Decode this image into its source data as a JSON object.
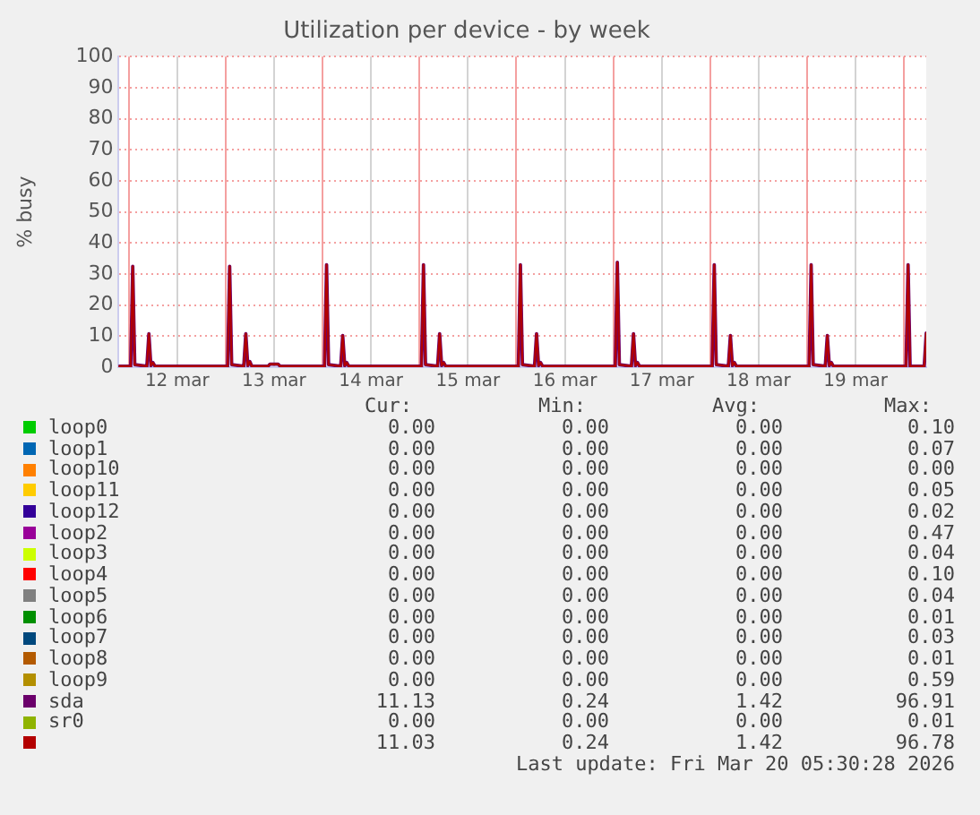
{
  "chart_data": {
    "type": "line",
    "title": "Utilization per device - by week",
    "ylabel": "% busy",
    "xlim": [
      "2026-03-11T21:30",
      "2026-03-20T05:30"
    ],
    "xticks": [
      {
        "value": "2026-03-12T00:00",
        "label": null
      },
      {
        "value": "2026-03-12T12:00",
        "label": "12 mar"
      },
      {
        "value": "2026-03-13T00:00",
        "label": null
      },
      {
        "value": "2026-03-13T12:00",
        "label": "13 mar"
      },
      {
        "value": "2026-03-14T00:00",
        "label": null
      },
      {
        "value": "2026-03-14T12:00",
        "label": "14 mar"
      },
      {
        "value": "2026-03-15T00:00",
        "label": null
      },
      {
        "value": "2026-03-15T12:00",
        "label": "15 mar"
      },
      {
        "value": "2026-03-16T00:00",
        "label": null
      },
      {
        "value": "2026-03-16T12:00",
        "label": "16 mar"
      },
      {
        "value": "2026-03-17T00:00",
        "label": null
      },
      {
        "value": "2026-03-17T12:00",
        "label": "17 mar"
      },
      {
        "value": "2026-03-18T00:00",
        "label": null
      },
      {
        "value": "2026-03-18T12:00",
        "label": "18 mar"
      },
      {
        "value": "2026-03-19T00:00",
        "label": null
      },
      {
        "value": "2026-03-19T12:00",
        "label": "19 mar"
      },
      {
        "value": "2026-03-20T00:00",
        "label": null
      }
    ],
    "ylim": [
      0,
      100
    ],
    "yticks": [
      0,
      10,
      20,
      30,
      40,
      50,
      60,
      70,
      80,
      90,
      100
    ],
    "grid": true,
    "legend": "bottom",
    "marker": "none",
    "line_style": "solid",
    "series": [
      {
        "name": "loop0",
        "color": "#00cc00"
      },
      {
        "name": "loop1",
        "color": "#0066b3"
      },
      {
        "name": "loop10",
        "color": "#ff8000"
      },
      {
        "name": "loop11",
        "color": "#ffcc00"
      },
      {
        "name": "loop12",
        "color": "#330099"
      },
      {
        "name": "loop2",
        "color": "#990099"
      },
      {
        "name": "loop3",
        "color": "#ccff00"
      },
      {
        "name": "loop4",
        "color": "#ff0000"
      },
      {
        "name": "loop5",
        "color": "#808080"
      },
      {
        "name": "loop6",
        "color": "#008f00"
      },
      {
        "name": "loop7",
        "color": "#00487d"
      },
      {
        "name": "loop8",
        "color": "#b35a00"
      },
      {
        "name": "loop9",
        "color": "#b38f00"
      },
      {
        "name": "sda",
        "color": "#6b006b",
        "x": [
          "2026-03-11T21:30",
          "2026-03-12T00:30",
          "2026-03-12T01:00",
          "2026-03-12T01:30",
          "2026-03-12T04:30",
          "2026-03-12T05:00",
          "2026-03-12T05:30",
          "2026-03-12T06:00",
          "2026-03-12T06:30",
          "2026-03-12T23:30",
          "2026-03-13T00:30",
          "2026-03-13T01:00",
          "2026-03-13T01:30",
          "2026-03-13T04:30",
          "2026-03-13T05:00",
          "2026-03-13T05:30",
          "2026-03-13T06:00",
          "2026-03-13T06:30",
          "2026-03-13T10:30",
          "2026-03-13T11:00",
          "2026-03-13T13:00",
          "2026-03-13T13:30",
          "2026-03-13T23:30",
          "2026-03-14T00:30",
          "2026-03-14T01:00",
          "2026-03-14T01:30",
          "2026-03-14T04:30",
          "2026-03-14T05:00",
          "2026-03-14T05:30",
          "2026-03-14T06:00",
          "2026-03-14T06:30",
          "2026-03-14T23:30",
          "2026-03-15T00:30",
          "2026-03-15T01:00",
          "2026-03-15T01:30",
          "2026-03-15T04:30",
          "2026-03-15T05:00",
          "2026-03-15T05:30",
          "2026-03-15T06:00",
          "2026-03-15T06:30",
          "2026-03-15T23:30",
          "2026-03-16T00:30",
          "2026-03-16T01:00",
          "2026-03-16T01:30",
          "2026-03-16T04:30",
          "2026-03-16T05:00",
          "2026-03-16T05:30",
          "2026-03-16T06:00",
          "2026-03-16T06:30",
          "2026-03-16T23:30",
          "2026-03-17T00:30",
          "2026-03-17T01:00",
          "2026-03-17T01:30",
          "2026-03-17T04:30",
          "2026-03-17T05:00",
          "2026-03-17T05:30",
          "2026-03-17T06:00",
          "2026-03-17T06:30",
          "2026-03-17T23:30",
          "2026-03-18T00:30",
          "2026-03-18T01:00",
          "2026-03-18T01:30",
          "2026-03-18T04:30",
          "2026-03-18T05:00",
          "2026-03-18T05:30",
          "2026-03-18T06:00",
          "2026-03-18T06:30",
          "2026-03-18T23:30",
          "2026-03-19T00:30",
          "2026-03-19T01:00",
          "2026-03-19T01:30",
          "2026-03-19T04:30",
          "2026-03-19T05:00",
          "2026-03-19T05:30",
          "2026-03-19T06:00",
          "2026-03-19T06:30",
          "2026-03-19T23:30",
          "2026-03-20T00:30",
          "2026-03-20T01:00",
          "2026-03-20T01:30",
          "2026-03-20T05:00",
          "2026-03-20T05:30"
        ],
        "values": [
          0.3,
          0.3,
          32.5,
          0.8,
          0.3,
          10.8,
          0.5,
          1.5,
          0.3,
          0.3,
          0.3,
          32.5,
          0.8,
          0.3,
          10.8,
          0.5,
          1.8,
          0.3,
          0.3,
          1,
          1,
          0.3,
          0.3,
          0.3,
          33,
          0.8,
          0.3,
          10.2,
          0.5,
          1.5,
          0.3,
          0.3,
          0.3,
          33,
          0.8,
          0.3,
          10.8,
          0.5,
          1.5,
          0.3,
          0.3,
          0.3,
          33,
          0.8,
          0.3,
          10.8,
          0.5,
          1.5,
          0.3,
          0.3,
          0.3,
          33.8,
          0.8,
          0.3,
          10.8,
          0.5,
          1.5,
          0.3,
          0.3,
          0.3,
          33,
          0.8,
          0.3,
          10.2,
          0.5,
          1.5,
          0.3,
          0.3,
          0.3,
          33,
          0.8,
          0.3,
          10.2,
          0.5,
          1.5,
          0.3,
          0.3,
          0.3,
          33,
          0.3,
          0.3,
          11
        ]
      },
      {
        "name": "sr0",
        "color": "#8fb300"
      },
      {
        "color": "#b30000",
        "x": [
          "2026-03-11T21:30",
          "2026-03-12T00:30",
          "2026-03-12T01:00",
          "2026-03-12T01:30",
          "2026-03-12T04:30",
          "2026-03-12T05:00",
          "2026-03-12T05:30",
          "2026-03-12T06:00",
          "2026-03-12T06:30",
          "2026-03-12T23:30",
          "2026-03-13T00:30",
          "2026-03-13T01:00",
          "2026-03-13T01:30",
          "2026-03-13T04:30",
          "2026-03-13T05:00",
          "2026-03-13T05:30",
          "2026-03-13T06:00",
          "2026-03-13T06:30",
          "2026-03-13T10:30",
          "2026-03-13T11:00",
          "2026-03-13T13:00",
          "2026-03-13T13:30",
          "2026-03-13T23:30",
          "2026-03-14T00:30",
          "2026-03-14T01:00",
          "2026-03-14T01:30",
          "2026-03-14T04:30",
          "2026-03-14T05:00",
          "2026-03-14T05:30",
          "2026-03-14T06:00",
          "2026-03-14T06:30",
          "2026-03-14T23:30",
          "2026-03-15T00:30",
          "2026-03-15T01:00",
          "2026-03-15T01:30",
          "2026-03-15T04:30",
          "2026-03-15T05:00",
          "2026-03-15T05:30",
          "2026-03-15T06:00",
          "2026-03-15T06:30",
          "2026-03-15T23:30",
          "2026-03-16T00:30",
          "2026-03-16T01:00",
          "2026-03-16T01:30",
          "2026-03-16T04:30",
          "2026-03-16T05:00",
          "2026-03-16T05:30",
          "2026-03-16T06:00",
          "2026-03-16T06:30",
          "2026-03-16T23:30",
          "2026-03-17T00:30",
          "2026-03-17T01:00",
          "2026-03-17T01:30",
          "2026-03-17T04:30",
          "2026-03-17T05:00",
          "2026-03-17T05:30",
          "2026-03-17T06:00",
          "2026-03-17T06:30",
          "2026-03-17T23:30",
          "2026-03-18T00:30",
          "2026-03-18T01:00",
          "2026-03-18T01:30",
          "2026-03-18T04:30",
          "2026-03-18T05:00",
          "2026-03-18T05:30",
          "2026-03-18T06:00",
          "2026-03-18T06:30",
          "2026-03-18T23:30",
          "2026-03-19T00:30",
          "2026-03-19T01:00",
          "2026-03-19T01:30",
          "2026-03-19T04:30",
          "2026-03-19T05:00",
          "2026-03-19T05:30",
          "2026-03-19T06:00",
          "2026-03-19T06:30",
          "2026-03-19T23:30",
          "2026-03-20T00:30",
          "2026-03-20T01:00",
          "2026-03-20T01:30",
          "2026-03-20T05:00",
          "2026-03-20T05:30"
        ],
        "values": [
          0.3,
          0.3,
          32.5,
          0.8,
          0.3,
          10.8,
          0.5,
          1.5,
          0.3,
          0.3,
          0.3,
          32.5,
          0.8,
          0.3,
          10.8,
          0.5,
          1.8,
          0.3,
          0.3,
          1,
          1,
          0.3,
          0.3,
          0.3,
          33,
          0.8,
          0.3,
          10.2,
          0.5,
          1.5,
          0.3,
          0.3,
          0.3,
          33,
          0.8,
          0.3,
          10.8,
          0.5,
          1.5,
          0.3,
          0.3,
          0.3,
          33,
          0.8,
          0.3,
          10.8,
          0.5,
          1.5,
          0.3,
          0.3,
          0.3,
          33.8,
          0.8,
          0.3,
          10.8,
          0.5,
          1.5,
          0.3,
          0.3,
          0.3,
          33,
          0.8,
          0.3,
          10.2,
          0.5,
          1.5,
          0.3,
          0.3,
          0.3,
          33,
          0.8,
          0.3,
          10.2,
          0.5,
          1.5,
          0.3,
          0.3,
          0.3,
          33,
          0.3,
          0.3,
          11
        ]
      }
    ],
    "annotations": [
      "Cur:",
      "Min:",
      "Avg:",
      "Max:",
      "0.00",
      "0.00",
      "0.00",
      "0.10",
      "0.00",
      "0.00",
      "0.00",
      "0.07",
      "0.00",
      "0.00",
      "0.00",
      "0.00",
      "0.00",
      "0.00",
      "0.00",
      "0.05",
      "0.00",
      "0.00",
      "0.00",
      "0.02",
      "0.00",
      "0.00",
      "0.00",
      "0.47",
      "0.00",
      "0.00",
      "0.00",
      "0.04",
      "0.00",
      "0.00",
      "0.00",
      "0.10",
      "0.00",
      "0.00",
      "0.00",
      "0.04",
      "0.00",
      "0.00",
      "0.00",
      "0.01",
      "0.00",
      "0.00",
      "0.00",
      "0.03",
      "0.00",
      "0.00",
      "0.00",
      "0.01",
      "0.00",
      "0.00",
      "0.00",
      "0.59",
      "11.13",
      "0.24",
      "1.42",
      "96.91",
      "0.00",
      "0.00",
      "0.00",
      "0.01",
      "11.03",
      "0.24",
      "1.42",
      "96.78",
      "Last update: Fri Mar 20 05:30:28 2026"
    ]
  }
}
